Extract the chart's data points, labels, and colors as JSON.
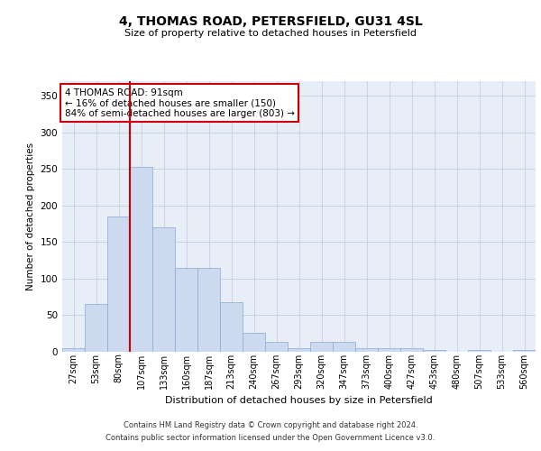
{
  "title1": "4, THOMAS ROAD, PETERSFIELD, GU31 4SL",
  "title2": "Size of property relative to detached houses in Petersfield",
  "xlabel": "Distribution of detached houses by size in Petersfield",
  "ylabel": "Number of detached properties",
  "footnote1": "Contains HM Land Registry data © Crown copyright and database right 2024.",
  "footnote2": "Contains public sector information licensed under the Open Government Licence v3.0.",
  "annotation_title": "4 THOMAS ROAD: 91sqm",
  "annotation_line1": "← 16% of detached houses are smaller (150)",
  "annotation_line2": "84% of semi-detached houses are larger (803) →",
  "bar_color": "#ccd9ee",
  "bar_edge_color": "#8aaad4",
  "redline_color": "#cc0000",
  "grid_color": "#c8d4e4",
  "bg_color": "#e8eef8",
  "categories": [
    "27sqm",
    "53sqm",
    "80sqm",
    "107sqm",
    "133sqm",
    "160sqm",
    "187sqm",
    "213sqm",
    "240sqm",
    "267sqm",
    "293sqm",
    "320sqm",
    "347sqm",
    "373sqm",
    "400sqm",
    "427sqm",
    "453sqm",
    "480sqm",
    "507sqm",
    "533sqm",
    "560sqm"
  ],
  "values": [
    5,
    65,
    185,
    253,
    170,
    115,
    115,
    68,
    26,
    13,
    5,
    13,
    13,
    5,
    5,
    5,
    3,
    0,
    3,
    0,
    3
  ],
  "ylim": [
    0,
    370
  ],
  "yticks": [
    0,
    50,
    100,
    150,
    200,
    250,
    300,
    350
  ],
  "redline_x": 2.5,
  "figsize": [
    6.0,
    5.0
  ],
  "dpi": 100
}
